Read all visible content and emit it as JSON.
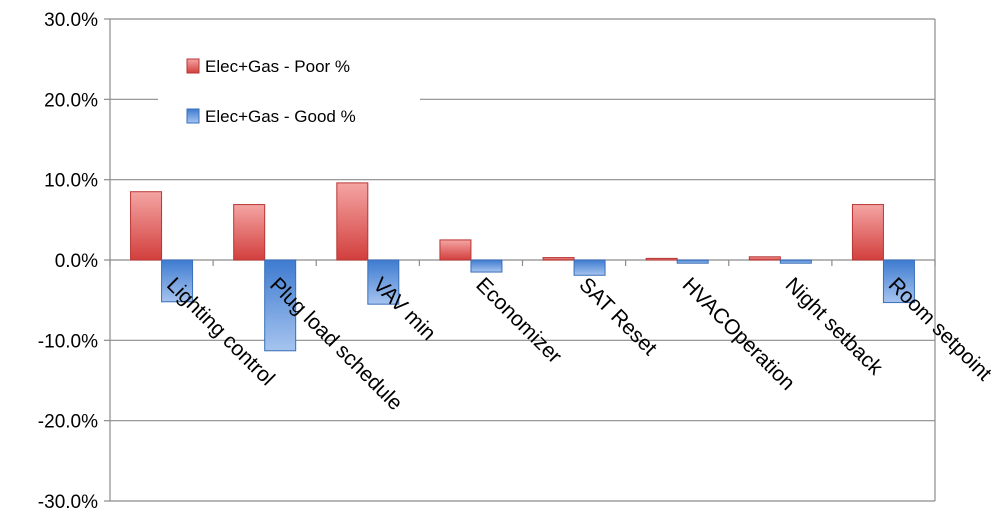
{
  "chart_data": {
    "type": "bar",
    "categories": [
      "Lighting control",
      "Plug load schedule",
      "VAV min",
      "Economizer",
      "SAT Reset",
      "HVACOperation",
      "Night setback",
      "Room setpoint"
    ],
    "series": [
      {
        "name": "Elec+Gas - Poor %",
        "values": [
          8.5,
          6.9,
          9.6,
          2.5,
          0.3,
          0.2,
          0.4,
          6.9
        ],
        "color": "#e05c5c"
      },
      {
        "name": "Elec+Gas - Good %",
        "values": [
          -5.2,
          -11.3,
          -5.5,
          -1.5,
          -1.9,
          -0.4,
          -0.4,
          -5.3
        ],
        "color": "#5b8fd8"
      }
    ],
    "ylim": [
      -30,
      30
    ],
    "yticks": [
      "30.0%",
      "20.0%",
      "10.0%",
      "0.0%",
      "-10.0%",
      "-20.0%",
      "-30.0%"
    ],
    "ytick_values": [
      30,
      20,
      10,
      0,
      -10,
      -20,
      -30
    ],
    "grid": true,
    "legend_position": "top-left"
  }
}
